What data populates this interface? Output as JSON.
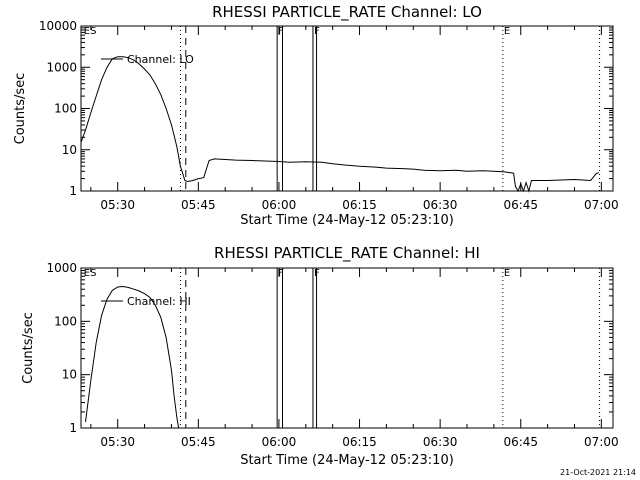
{
  "footer": {
    "timestamp": "21-Oct-2021 21:14"
  },
  "chart_data": [
    {
      "type": "line",
      "title": "RHESSI PARTICLE_RATE Channel: LO",
      "xlabel": "Start Time (24-May-12 05:23:10)",
      "ylabel": "Counts/sec",
      "y_scale": "log",
      "ylim": [
        1,
        10000
      ],
      "xlim": [
        "05:23:10",
        "07:02:10"
      ],
      "x_ticks": [
        "05:30",
        "05:45",
        "06:00",
        "06:15",
        "06:30",
        "06:45",
        "07:00"
      ],
      "y_ticks": [
        "1",
        "10",
        "100",
        "1000",
        "10000"
      ],
      "legend": {
        "position": "top-left",
        "entries": [
          "Channel: LO"
        ]
      },
      "flags": [
        {
          "label": "ES",
          "time": "05:23:30",
          "style": "none"
        },
        {
          "label": "",
          "time": "05:41:40",
          "style": "dotted"
        },
        {
          "label": "",
          "time": "05:42:40",
          "style": "dashed"
        },
        {
          "label": "F",
          "time": "05:59:40",
          "style": "solid"
        },
        {
          "label": "",
          "time": "06:00:40",
          "style": "solid"
        },
        {
          "label": "F",
          "time": "06:06:20",
          "style": "solid"
        },
        {
          "label": "",
          "time": "06:07:00",
          "style": "solid"
        },
        {
          "label": "E",
          "time": "06:41:40",
          "style": "dotted"
        },
        {
          "label": "",
          "time": "06:59:40",
          "style": "dotted"
        }
      ],
      "series": [
        {
          "name": "Channel: LO",
          "x": [
            "05:23:10",
            "05:24:00",
            "05:25:00",
            "05:26:00",
            "05:27:00",
            "05:28:00",
            "05:29:00",
            "05:30:00",
            "05:31:00",
            "05:32:00",
            "05:33:00",
            "05:34:00",
            "05:35:00",
            "05:36:00",
            "05:37:00",
            "05:38:00",
            "05:39:00",
            "05:40:00",
            "05:41:00",
            "05:41:40",
            "05:42:10",
            "05:42:30",
            "05:43:00",
            "05:44:00",
            "05:45:00",
            "05:46:00",
            "05:47:00",
            "05:48:00",
            "05:50:00",
            "05:52:00",
            "05:55:00",
            "05:58:00",
            "06:00:00",
            "06:02:00",
            "06:05:00",
            "06:08:00",
            "06:10:00",
            "06:12:00",
            "06:15:00",
            "06:18:00",
            "06:20:00",
            "06:23:00",
            "06:25:00",
            "06:27:00",
            "06:30:00",
            "06:33:00",
            "06:35:00",
            "06:38:00",
            "06:40:00",
            "06:42:00",
            "06:43:00",
            "06:43:40",
            "06:44:00",
            "06:44:30",
            "06:45:00",
            "06:45:30",
            "06:46:00",
            "06:46:30",
            "06:47:00",
            "06:48:00",
            "06:50:00",
            "06:55:00",
            "06:58:00",
            "06:59:00",
            "06:59:30"
          ],
          "y": [
            15,
            30,
            80,
            200,
            500,
            1000,
            1600,
            1800,
            1800,
            1700,
            1500,
            1200,
            900,
            650,
            400,
            220,
            100,
            40,
            12,
            4,
            2.5,
            1.8,
            1.7,
            1.8,
            2.0,
            2.1,
            5.5,
            6.0,
            5.8,
            5.6,
            5.5,
            5.3,
            5.2,
            5.0,
            5.1,
            5.0,
            4.6,
            4.3,
            4.0,
            3.8,
            3.6,
            3.5,
            3.4,
            3.2,
            3.1,
            3.2,
            3.0,
            3.1,
            3.0,
            2.9,
            2.8,
            2.7,
            1.3,
            1.0,
            1.5,
            1.0,
            1.6,
            1.0,
            1.8,
            1.8,
            1.8,
            1.9,
            1.8,
            2.6,
            2.8
          ]
        }
      ]
    },
    {
      "type": "line",
      "title": "RHESSI PARTICLE_RATE Channel: HI",
      "xlabel": "Start Time (24-May-12 05:23:10)",
      "ylabel": "Counts/sec",
      "y_scale": "log",
      "ylim": [
        1,
        1000
      ],
      "xlim": [
        "05:23:10",
        "07:02:10"
      ],
      "x_ticks": [
        "05:30",
        "05:45",
        "06:00",
        "06:15",
        "06:30",
        "06:45",
        "07:00"
      ],
      "y_ticks": [
        "1",
        "10",
        "100",
        "1000"
      ],
      "legend": {
        "position": "top-left",
        "entries": [
          "Channel: HI"
        ]
      },
      "flags": [
        {
          "label": "ES",
          "time": "05:23:30",
          "style": "none"
        },
        {
          "label": "",
          "time": "05:41:40",
          "style": "dotted"
        },
        {
          "label": "",
          "time": "05:42:40",
          "style": "dashed"
        },
        {
          "label": "F",
          "time": "05:59:40",
          "style": "solid"
        },
        {
          "label": "",
          "time": "06:00:40",
          "style": "solid"
        },
        {
          "label": "F",
          "time": "06:06:20",
          "style": "solid"
        },
        {
          "label": "",
          "time": "06:07:00",
          "style": "solid"
        },
        {
          "label": "E",
          "time": "06:41:40",
          "style": "dotted"
        },
        {
          "label": "",
          "time": "06:59:40",
          "style": "dotted"
        }
      ],
      "series": [
        {
          "name": "Channel: HI",
          "x": [
            "05:24:00",
            "05:25:00",
            "05:26:00",
            "05:27:00",
            "05:28:00",
            "05:29:00",
            "05:30:00",
            "05:31:00",
            "05:32:00",
            "05:33:00",
            "05:34:00",
            "05:35:00",
            "05:36:00",
            "05:37:00",
            "05:38:00",
            "05:39:00",
            "05:40:00",
            "05:40:30",
            "05:41:00",
            "05:41:20"
          ],
          "y": [
            1.3,
            8,
            40,
            130,
            260,
            380,
            440,
            450,
            430,
            400,
            370,
            330,
            280,
            200,
            120,
            50,
            12,
            4,
            1.6,
            1.0
          ]
        }
      ]
    }
  ]
}
